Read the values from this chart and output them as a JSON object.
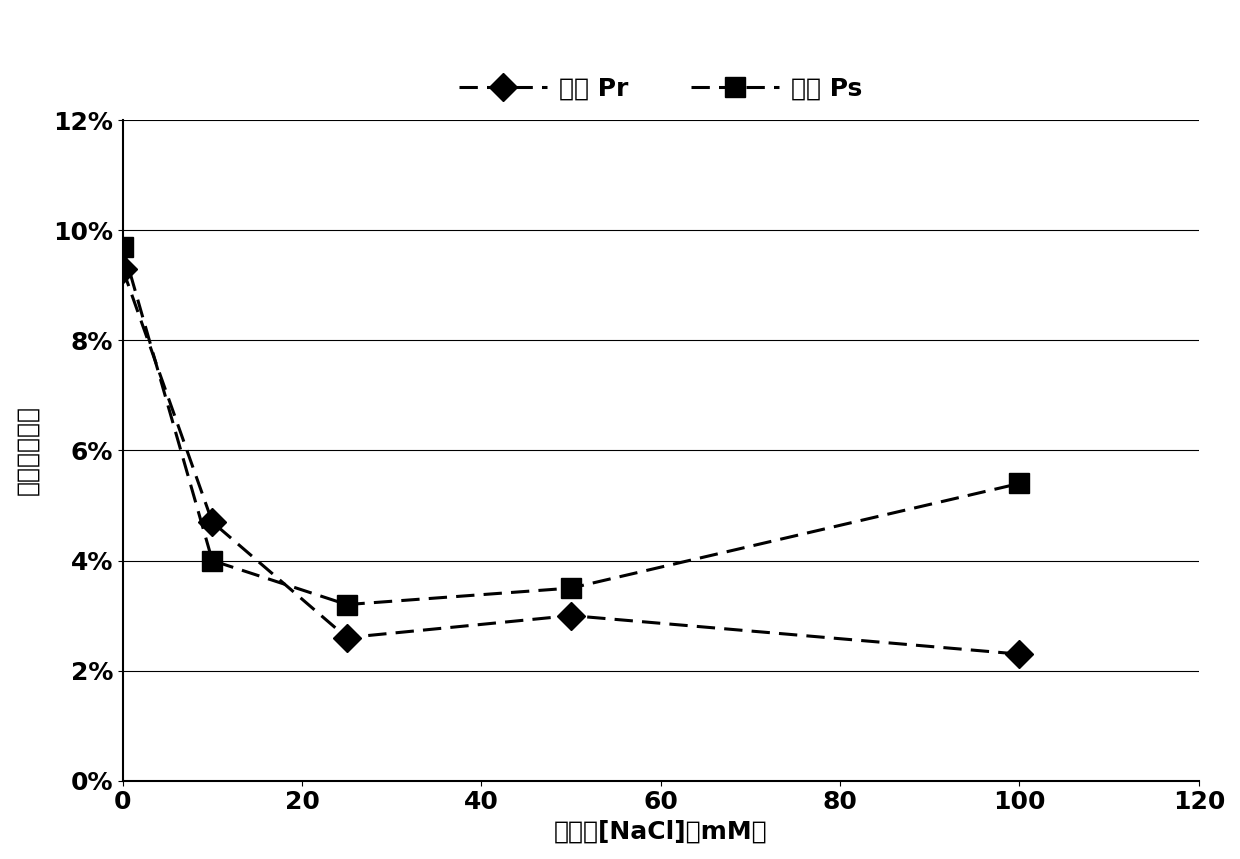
{
  "title": "",
  "xlabel": "反应中[NaCl]（mM）",
  "ylabel": "游离质量分数",
  "xlim": [
    0,
    120
  ],
  "ylim": [
    0,
    0.12
  ],
  "xticks": [
    0,
    20,
    40,
    60,
    80,
    100,
    120
  ],
  "yticks": [
    0,
    0.02,
    0.04,
    0.06,
    0.08,
    0.1,
    0.12
  ],
  "series": [
    {
      "label": "游离 Pr",
      "x": [
        0,
        10,
        25,
        50,
        100
      ],
      "y": [
        0.093,
        0.047,
        0.026,
        0.03,
        0.023
      ],
      "color": "#000000",
      "marker": "D",
      "marker_size": 14,
      "linestyle": "--"
    },
    {
      "label": "游离 Ps",
      "x": [
        0,
        10,
        25,
        50,
        100
      ],
      "y": [
        0.097,
        0.04,
        0.032,
        0.035,
        0.054
      ],
      "color": "#000000",
      "marker": "s",
      "marker_size": 14,
      "linestyle": "--"
    }
  ],
  "legend_fontsize": 18,
  "axis_label_fontsize": 18,
  "tick_fontsize": 18,
  "background_color": "#ffffff",
  "grid_color": "#000000",
  "line_width": 2.2
}
